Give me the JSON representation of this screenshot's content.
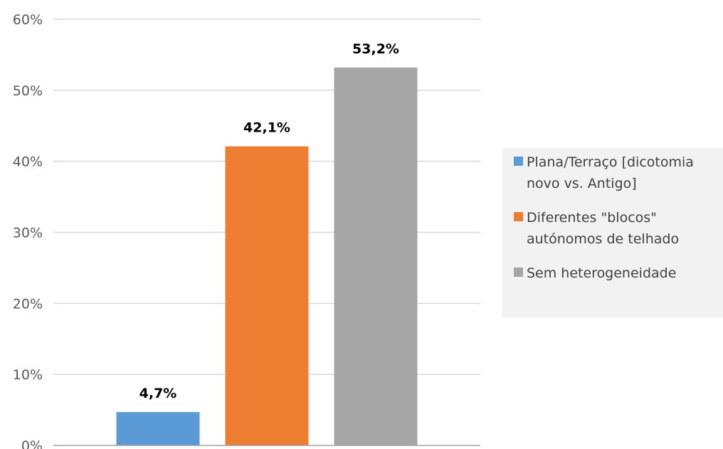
{
  "chart_data": {
    "type": "bar",
    "categories": [
      "Plana/Terraço [dicotomia novo vs. Antigo]",
      "Diferentes \"blocos\" autónomos de telhado",
      "Sem heterogeneidade"
    ],
    "values": [
      4.7,
      42.1,
      53.2
    ],
    "value_labels": [
      "4,7%",
      "42,1%",
      "53,2%"
    ],
    "colors": [
      "#5b9bd5",
      "#ed7d31",
      "#a5a5a5"
    ],
    "ylim": [
      0,
      60
    ],
    "yticks": [
      0,
      10,
      20,
      30,
      40,
      50,
      60
    ],
    "ytick_labels": [
      "0%",
      "10%",
      "20%",
      "30%",
      "40%",
      "50%",
      "60%"
    ],
    "legend": {
      "placement": "right",
      "entries": [
        {
          "lines": [
            "Plana/Terraço [dicotomia",
            "novo vs. Antigo]"
          ],
          "color": "#5b9bd5"
        },
        {
          "lines": [
            "Diferentes \"blocos\"",
            "autónomos de telhado"
          ],
          "color": "#ed7d31"
        },
        {
          "lines": [
            "Sem heterogeneidade"
          ],
          "color": "#a5a5a5"
        }
      ]
    },
    "grid": true,
    "gridline_color": "#d9d9d9",
    "axis_color": "#a6a6a6"
  }
}
